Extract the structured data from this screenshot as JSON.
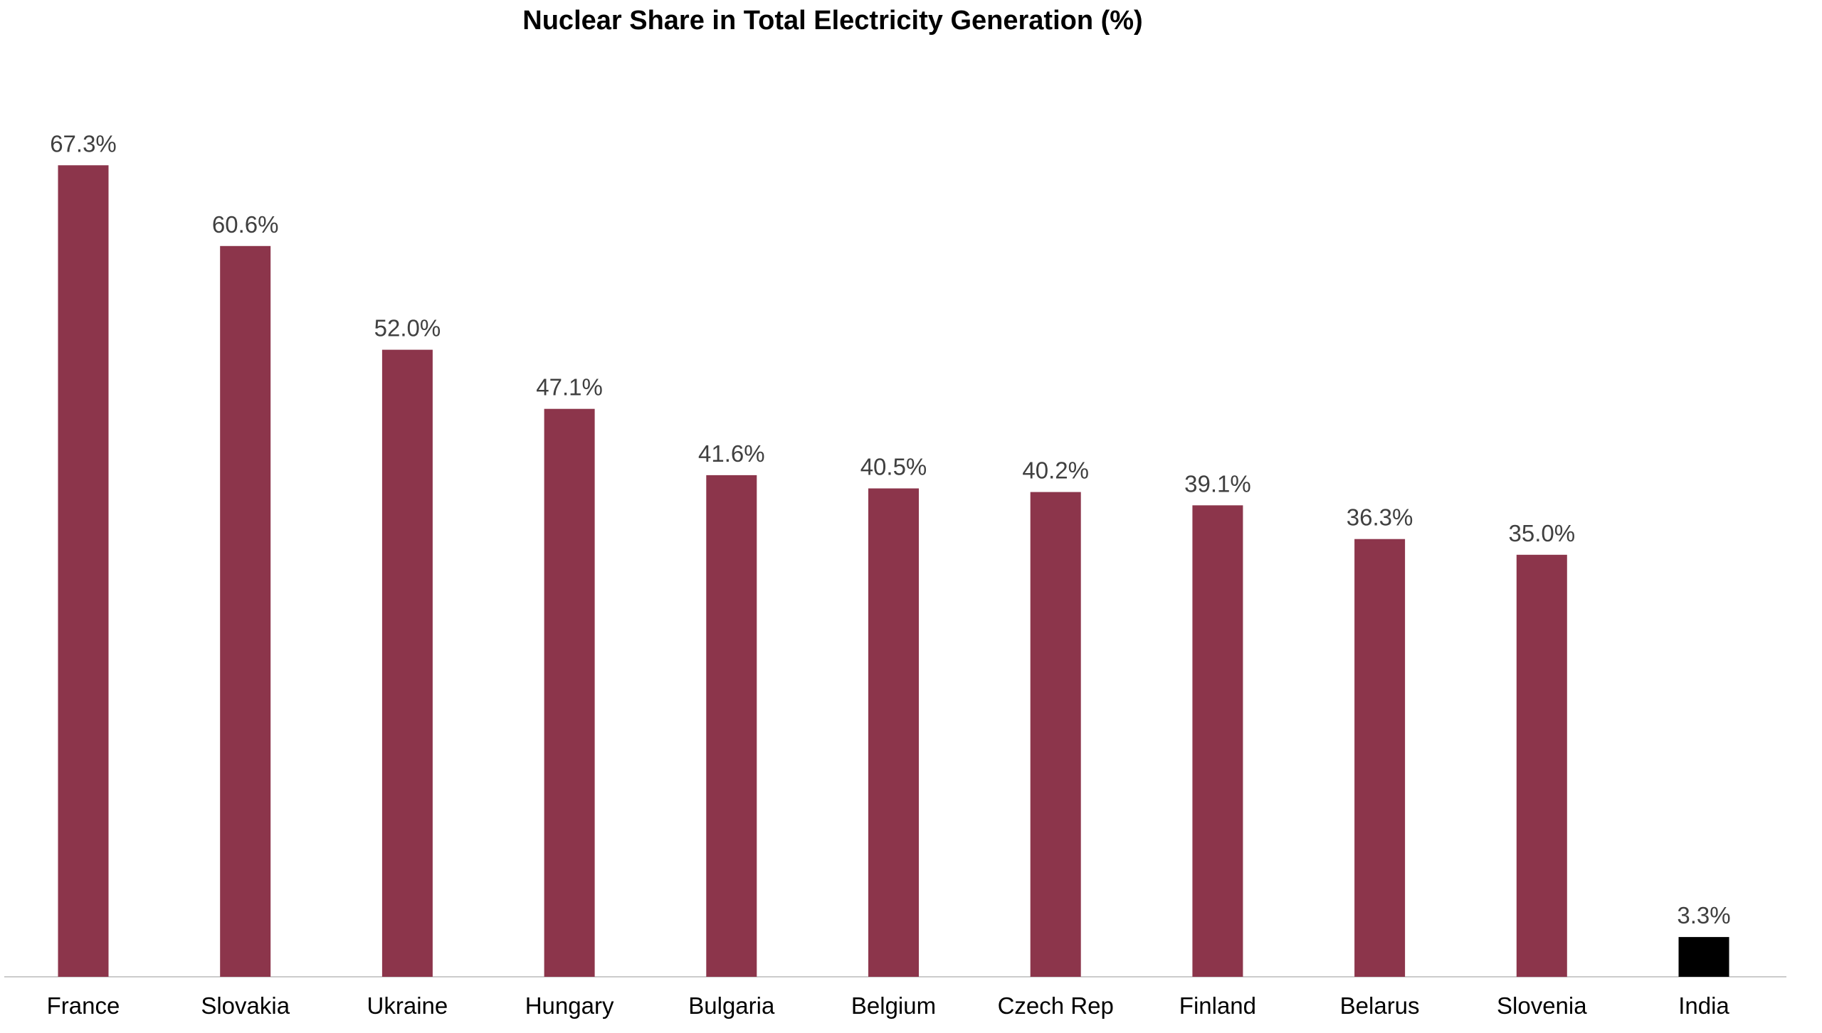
{
  "chart_data": {
    "type": "bar",
    "title": "Nuclear Share in Total Electricity Generation (%)",
    "xlabel": "",
    "ylabel": "",
    "ylim": [
      0,
      70
    ],
    "grid": false,
    "legend": "none",
    "value_suffix": "%",
    "categories": [
      "France",
      "Slovakia",
      "Ukraine",
      "Hungary",
      "Bulgaria",
      "Belgium",
      "Czech Rep",
      "Finland",
      "Belarus",
      "Slovenia",
      "India"
    ],
    "values": [
      67.3,
      60.6,
      52.0,
      47.1,
      41.6,
      40.5,
      40.2,
      39.1,
      36.3,
      35.0,
      3.3
    ],
    "value_labels": [
      "67.3%",
      "60.6%",
      "52.0%",
      "47.1%",
      "41.6%",
      "40.5%",
      "40.2%",
      "39.1%",
      "36.3%",
      "35.0%",
      "3.3%"
    ],
    "colors": {
      "default": "#8C354B",
      "highlight": "#000000",
      "baseline": "#cccccc",
      "value_label": "#404040"
    },
    "highlight_category": "India"
  }
}
